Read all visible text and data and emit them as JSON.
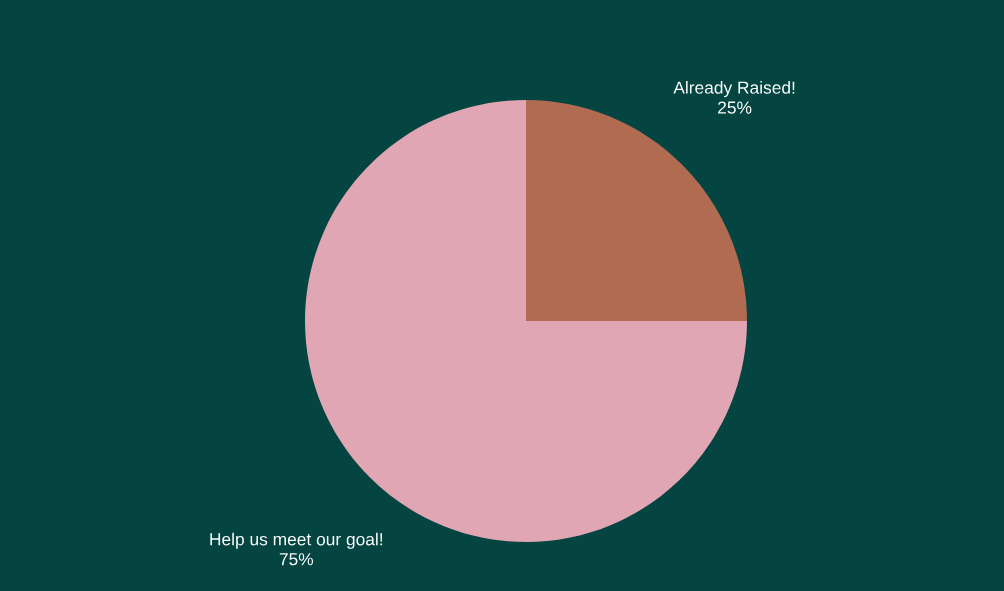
{
  "chart_data": {
    "type": "pie",
    "categories": [
      "Already Raised!",
      "Help us meet our goal!"
    ],
    "values": [
      25,
      75
    ],
    "colors": [
      "#b06b50",
      "#e0a6b4"
    ],
    "value_labels": [
      "25%",
      "75%"
    ],
    "legend": false
  }
}
